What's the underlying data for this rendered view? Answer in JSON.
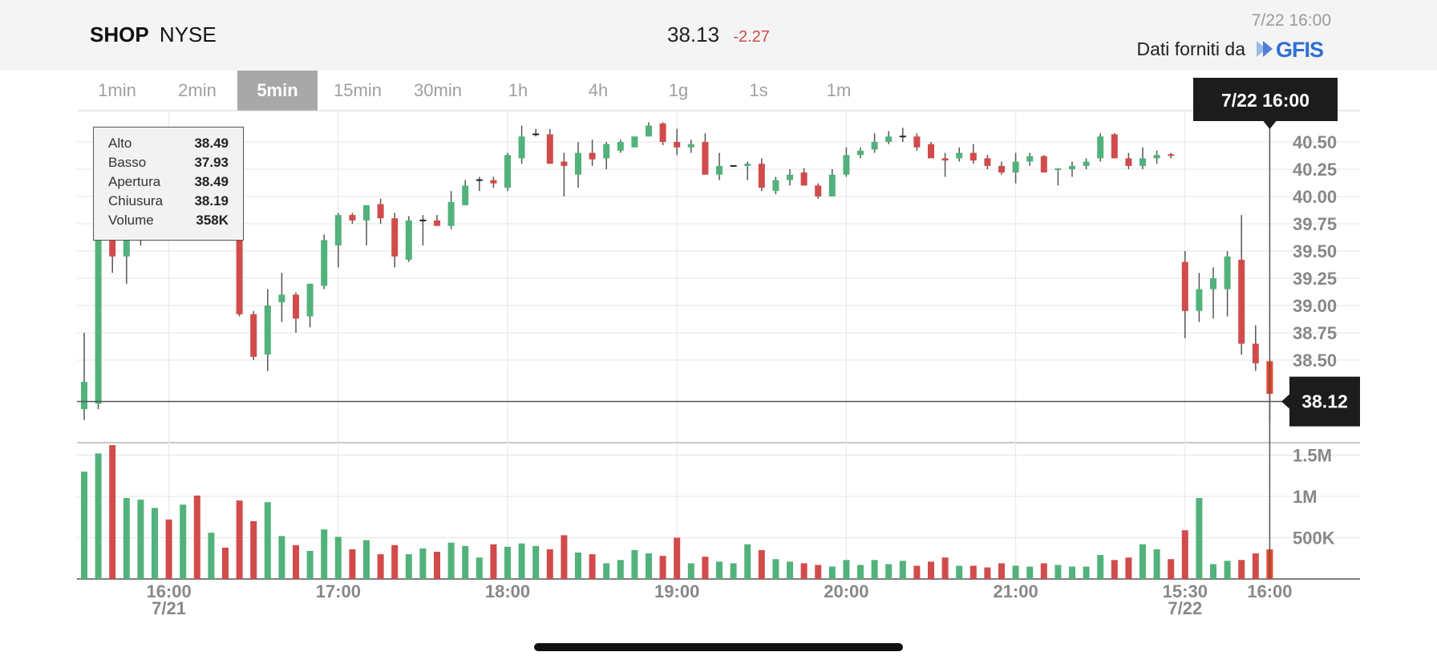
{
  "header": {
    "symbol": "SHOP",
    "exchange": "NYSE",
    "last_price": "38.13",
    "change": "-2.27",
    "timestamp": "7/22 16:00",
    "provider_label": "Dati forniti da",
    "provider_logo": "GFIS"
  },
  "tabs": [
    {
      "label": "1min",
      "active": false
    },
    {
      "label": "2min",
      "active": false
    },
    {
      "label": "5min",
      "active": true
    },
    {
      "label": "15min",
      "active": false
    },
    {
      "label": "30min",
      "active": false
    },
    {
      "label": "1h",
      "active": false
    },
    {
      "label": "4h",
      "active": false
    },
    {
      "label": "1g",
      "active": false
    },
    {
      "label": "1s",
      "active": false
    },
    {
      "label": "1m",
      "active": false
    }
  ],
  "tooltip": {
    "rows": [
      {
        "label": "Alto",
        "value": "38.49"
      },
      {
        "label": "Basso",
        "value": "37.93"
      },
      {
        "label": "Apertura",
        "value": "38.49"
      },
      {
        "label": "Chiusura",
        "value": "38.19"
      },
      {
        "label": "Volume",
        "value": "358K"
      }
    ]
  },
  "crosshair": {
    "time_label": "7/22 16:00",
    "price_label": "38.12",
    "price": 38.12
  },
  "colors": {
    "up": "#52b27b",
    "down": "#d24b4b",
    "last": "#e8462b",
    "grid": "#e6e6e6",
    "label_bg": "#1c1c1c"
  },
  "chart_data": {
    "type": "candlestick",
    "price_ylim": [
      37.9,
      40.72
    ],
    "price_ticks": [
      "38.50",
      "38.75",
      "39.00",
      "39.25",
      "39.50",
      "39.75",
      "40.00",
      "40.25",
      "40.50"
    ],
    "volume_ylim": [
      0,
      1650000
    ],
    "volume_ticks": [
      {
        "label": "500K",
        "value": 500000
      },
      {
        "label": "1M",
        "value": 1000000
      },
      {
        "label": "1.5M",
        "value": 1500000
      }
    ],
    "x_labels": [
      {
        "label": "16:00",
        "sub": "7/21",
        "index": 6
      },
      {
        "label": "17:00",
        "sub": "",
        "index": 18
      },
      {
        "label": "18:00",
        "sub": "",
        "index": 30
      },
      {
        "label": "19:00",
        "sub": "",
        "index": 42
      },
      {
        "label": "20:00",
        "sub": "",
        "index": 54
      },
      {
        "label": "21:00",
        "sub": "",
        "index": 66
      },
      {
        "label": "15:30",
        "sub": "7/22",
        "index": 78
      },
      {
        "label": "16:00",
        "sub": "",
        "index": 84
      }
    ],
    "candles": [
      {
        "o": 38.05,
        "h": 38.75,
        "l": 37.95,
        "c": 38.3,
        "v": 1300000
      },
      {
        "o": 38.1,
        "h": 39.85,
        "l": 38.05,
        "c": 39.75,
        "v": 1520000
      },
      {
        "o": 39.75,
        "h": 39.9,
        "l": 39.3,
        "c": 39.45,
        "v": 1620000
      },
      {
        "o": 39.45,
        "h": 39.7,
        "l": 39.2,
        "c": 39.65,
        "v": 980000
      },
      {
        "o": 39.6,
        "h": 39.75,
        "l": 39.55,
        "c": 39.7,
        "v": 960000
      },
      {
        "o": 39.7,
        "h": 39.75,
        "l": 39.65,
        "c": 39.72,
        "v": 860000
      },
      {
        "o": 39.72,
        "h": 39.75,
        "l": 39.65,
        "c": 39.7,
        "v": 720000
      },
      {
        "o": 39.7,
        "h": 39.75,
        "l": 39.65,
        "c": 39.72,
        "v": 900000
      },
      {
        "o": 39.72,
        "h": 39.75,
        "l": 39.68,
        "c": 39.7,
        "v": 1010000
      },
      {
        "o": 39.7,
        "h": 39.75,
        "l": 39.65,
        "c": 39.72,
        "v": 560000
      },
      {
        "o": 39.72,
        "h": 39.75,
        "l": 39.68,
        "c": 39.7,
        "v": 380000
      },
      {
        "o": 39.7,
        "h": 39.75,
        "l": 38.9,
        "c": 38.92,
        "v": 950000
      },
      {
        "o": 38.92,
        "h": 38.95,
        "l": 38.5,
        "c": 38.53,
        "v": 700000
      },
      {
        "o": 38.55,
        "h": 39.15,
        "l": 38.4,
        "c": 39.0,
        "v": 930000
      },
      {
        "o": 39.03,
        "h": 39.3,
        "l": 38.85,
        "c": 39.1,
        "v": 520000
      },
      {
        "o": 39.1,
        "h": 39.12,
        "l": 38.75,
        "c": 38.88,
        "v": 410000
      },
      {
        "o": 38.9,
        "h": 39.2,
        "l": 38.8,
        "c": 39.2,
        "v": 340000
      },
      {
        "o": 39.18,
        "h": 39.65,
        "l": 39.15,
        "c": 39.6,
        "v": 600000
      },
      {
        "o": 39.55,
        "h": 39.85,
        "l": 39.35,
        "c": 39.83,
        "v": 510000
      },
      {
        "o": 39.83,
        "h": 39.85,
        "l": 39.75,
        "c": 39.78,
        "v": 360000
      },
      {
        "o": 39.78,
        "h": 39.92,
        "l": 39.55,
        "c": 39.92,
        "v": 470000
      },
      {
        "o": 39.93,
        "h": 39.98,
        "l": 39.75,
        "c": 39.8,
        "v": 300000
      },
      {
        "o": 39.8,
        "h": 39.85,
        "l": 39.35,
        "c": 39.45,
        "v": 410000
      },
      {
        "o": 39.42,
        "h": 39.82,
        "l": 39.4,
        "c": 39.78,
        "v": 300000
      },
      {
        "o": 39.78,
        "h": 39.83,
        "l": 39.55,
        "c": 39.78,
        "v": 370000
      },
      {
        "o": 39.78,
        "h": 39.83,
        "l": 39.75,
        "c": 39.73,
        "v": 330000
      },
      {
        "o": 39.73,
        "h": 40.05,
        "l": 39.7,
        "c": 39.95,
        "v": 440000
      },
      {
        "o": 39.92,
        "h": 40.15,
        "l": 39.92,
        "c": 40.1,
        "v": 400000
      },
      {
        "o": 40.15,
        "h": 40.18,
        "l": 40.05,
        "c": 40.15,
        "v": 260000
      },
      {
        "o": 40.15,
        "h": 40.18,
        "l": 40.08,
        "c": 40.12,
        "v": 420000
      },
      {
        "o": 40.08,
        "h": 40.4,
        "l": 40.05,
        "c": 40.38,
        "v": 390000
      },
      {
        "o": 40.35,
        "h": 40.65,
        "l": 40.3,
        "c": 40.55,
        "v": 430000
      },
      {
        "o": 40.57,
        "h": 40.62,
        "l": 40.55,
        "c": 40.57,
        "v": 400000
      },
      {
        "o": 40.57,
        "h": 40.62,
        "l": 40.3,
        "c": 40.3,
        "v": 360000
      },
      {
        "o": 40.32,
        "h": 40.4,
        "l": 40.0,
        "c": 40.28,
        "v": 530000
      },
      {
        "o": 40.2,
        "h": 40.5,
        "l": 40.08,
        "c": 40.4,
        "v": 320000
      },
      {
        "o": 40.4,
        "h": 40.52,
        "l": 40.28,
        "c": 40.34,
        "v": 300000
      },
      {
        "o": 40.35,
        "h": 40.5,
        "l": 40.25,
        "c": 40.48,
        "v": 190000
      },
      {
        "o": 40.42,
        "h": 40.52,
        "l": 40.4,
        "c": 40.5,
        "v": 230000
      },
      {
        "o": 40.45,
        "h": 40.55,
        "l": 40.45,
        "c": 40.55,
        "v": 350000
      },
      {
        "o": 40.55,
        "h": 40.68,
        "l": 40.55,
        "c": 40.65,
        "v": 310000
      },
      {
        "o": 40.67,
        "h": 40.68,
        "l": 40.47,
        "c": 40.5,
        "v": 280000
      },
      {
        "o": 40.5,
        "h": 40.62,
        "l": 40.38,
        "c": 40.45,
        "v": 500000
      },
      {
        "o": 40.45,
        "h": 40.52,
        "l": 40.4,
        "c": 40.48,
        "v": 190000
      },
      {
        "o": 40.5,
        "h": 40.58,
        "l": 40.2,
        "c": 40.2,
        "v": 270000
      },
      {
        "o": 40.2,
        "h": 40.4,
        "l": 40.15,
        "c": 40.28,
        "v": 210000
      },
      {
        "o": 40.28,
        "h": 40.28,
        "l": 40.28,
        "c": 40.28,
        "v": 190000
      },
      {
        "o": 40.28,
        "h": 40.32,
        "l": 40.15,
        "c": 40.3,
        "v": 420000
      },
      {
        "o": 40.3,
        "h": 40.35,
        "l": 40.05,
        "c": 40.08,
        "v": 350000
      },
      {
        "o": 40.05,
        "h": 40.18,
        "l": 40.02,
        "c": 40.15,
        "v": 240000
      },
      {
        "o": 40.15,
        "h": 40.25,
        "l": 40.1,
        "c": 40.2,
        "v": 210000
      },
      {
        "o": 40.22,
        "h": 40.26,
        "l": 40.1,
        "c": 40.1,
        "v": 190000
      },
      {
        "o": 40.1,
        "h": 40.12,
        "l": 39.98,
        "c": 40.0,
        "v": 170000
      },
      {
        "o": 40.0,
        "h": 40.25,
        "l": 40.0,
        "c": 40.2,
        "v": 150000
      },
      {
        "o": 40.2,
        "h": 40.45,
        "l": 40.18,
        "c": 40.38,
        "v": 230000
      },
      {
        "o": 40.38,
        "h": 40.45,
        "l": 40.35,
        "c": 40.42,
        "v": 170000
      },
      {
        "o": 40.43,
        "h": 40.58,
        "l": 40.4,
        "c": 40.5,
        "v": 230000
      },
      {
        "o": 40.5,
        "h": 40.6,
        "l": 40.48,
        "c": 40.55,
        "v": 180000
      },
      {
        "o": 40.55,
        "h": 40.63,
        "l": 40.5,
        "c": 40.55,
        "v": 220000
      },
      {
        "o": 40.55,
        "h": 40.58,
        "l": 40.42,
        "c": 40.45,
        "v": 160000
      },
      {
        "o": 40.48,
        "h": 40.5,
        "l": 40.35,
        "c": 40.35,
        "v": 210000
      },
      {
        "o": 40.35,
        "h": 40.4,
        "l": 40.18,
        "c": 40.33,
        "v": 260000
      },
      {
        "o": 40.35,
        "h": 40.45,
        "l": 40.32,
        "c": 40.4,
        "v": 160000
      },
      {
        "o": 40.4,
        "h": 40.48,
        "l": 40.3,
        "c": 40.33,
        "v": 160000
      },
      {
        "o": 40.35,
        "h": 40.38,
        "l": 40.25,
        "c": 40.28,
        "v": 140000
      },
      {
        "o": 40.28,
        "h": 40.32,
        "l": 40.2,
        "c": 40.22,
        "v": 190000
      },
      {
        "o": 40.22,
        "h": 40.4,
        "l": 40.12,
        "c": 40.32,
        "v": 160000
      },
      {
        "o": 40.32,
        "h": 40.4,
        "l": 40.28,
        "c": 40.37,
        "v": 150000
      },
      {
        "o": 40.37,
        "h": 40.38,
        "l": 40.22,
        "c": 40.22,
        "v": 190000
      },
      {
        "o": 40.24,
        "h": 40.26,
        "l": 40.1,
        "c": 40.25,
        "v": 170000
      },
      {
        "o": 40.25,
        "h": 40.32,
        "l": 40.18,
        "c": 40.28,
        "v": 150000
      },
      {
        "o": 40.28,
        "h": 40.35,
        "l": 40.25,
        "c": 40.32,
        "v": 150000
      },
      {
        "o": 40.35,
        "h": 40.58,
        "l": 40.32,
        "c": 40.55,
        "v": 290000
      },
      {
        "o": 40.57,
        "h": 40.58,
        "l": 40.35,
        "c": 40.35,
        "v": 230000
      },
      {
        "o": 40.35,
        "h": 40.4,
        "l": 40.25,
        "c": 40.28,
        "v": 260000
      },
      {
        "o": 40.28,
        "h": 40.45,
        "l": 40.25,
        "c": 40.35,
        "v": 420000
      },
      {
        "o": 40.35,
        "h": 40.42,
        "l": 40.3,
        "c": 40.38,
        "v": 360000
      },
      {
        "o": 40.38,
        "h": 40.4,
        "l": 40.35,
        "c": 40.37,
        "v": 240000
      },
      {
        "o": 39.4,
        "h": 39.5,
        "l": 38.7,
        "c": 38.95,
        "v": 590000
      },
      {
        "o": 38.95,
        "h": 39.3,
        "l": 38.85,
        "c": 39.15,
        "v": 980000
      },
      {
        "o": 39.15,
        "h": 39.35,
        "l": 38.88,
        "c": 39.25,
        "v": 180000
      },
      {
        "o": 39.15,
        "h": 39.5,
        "l": 38.9,
        "c": 39.45,
        "v": 220000
      },
      {
        "o": 39.42,
        "h": 39.83,
        "l": 38.55,
        "c": 38.65,
        "v": 230000
      },
      {
        "o": 38.65,
        "h": 38.82,
        "l": 38.4,
        "c": 38.47,
        "v": 310000
      },
      {
        "o": 38.49,
        "h": 38.49,
        "l": 37.93,
        "c": 38.19,
        "v": 358000
      }
    ]
  }
}
